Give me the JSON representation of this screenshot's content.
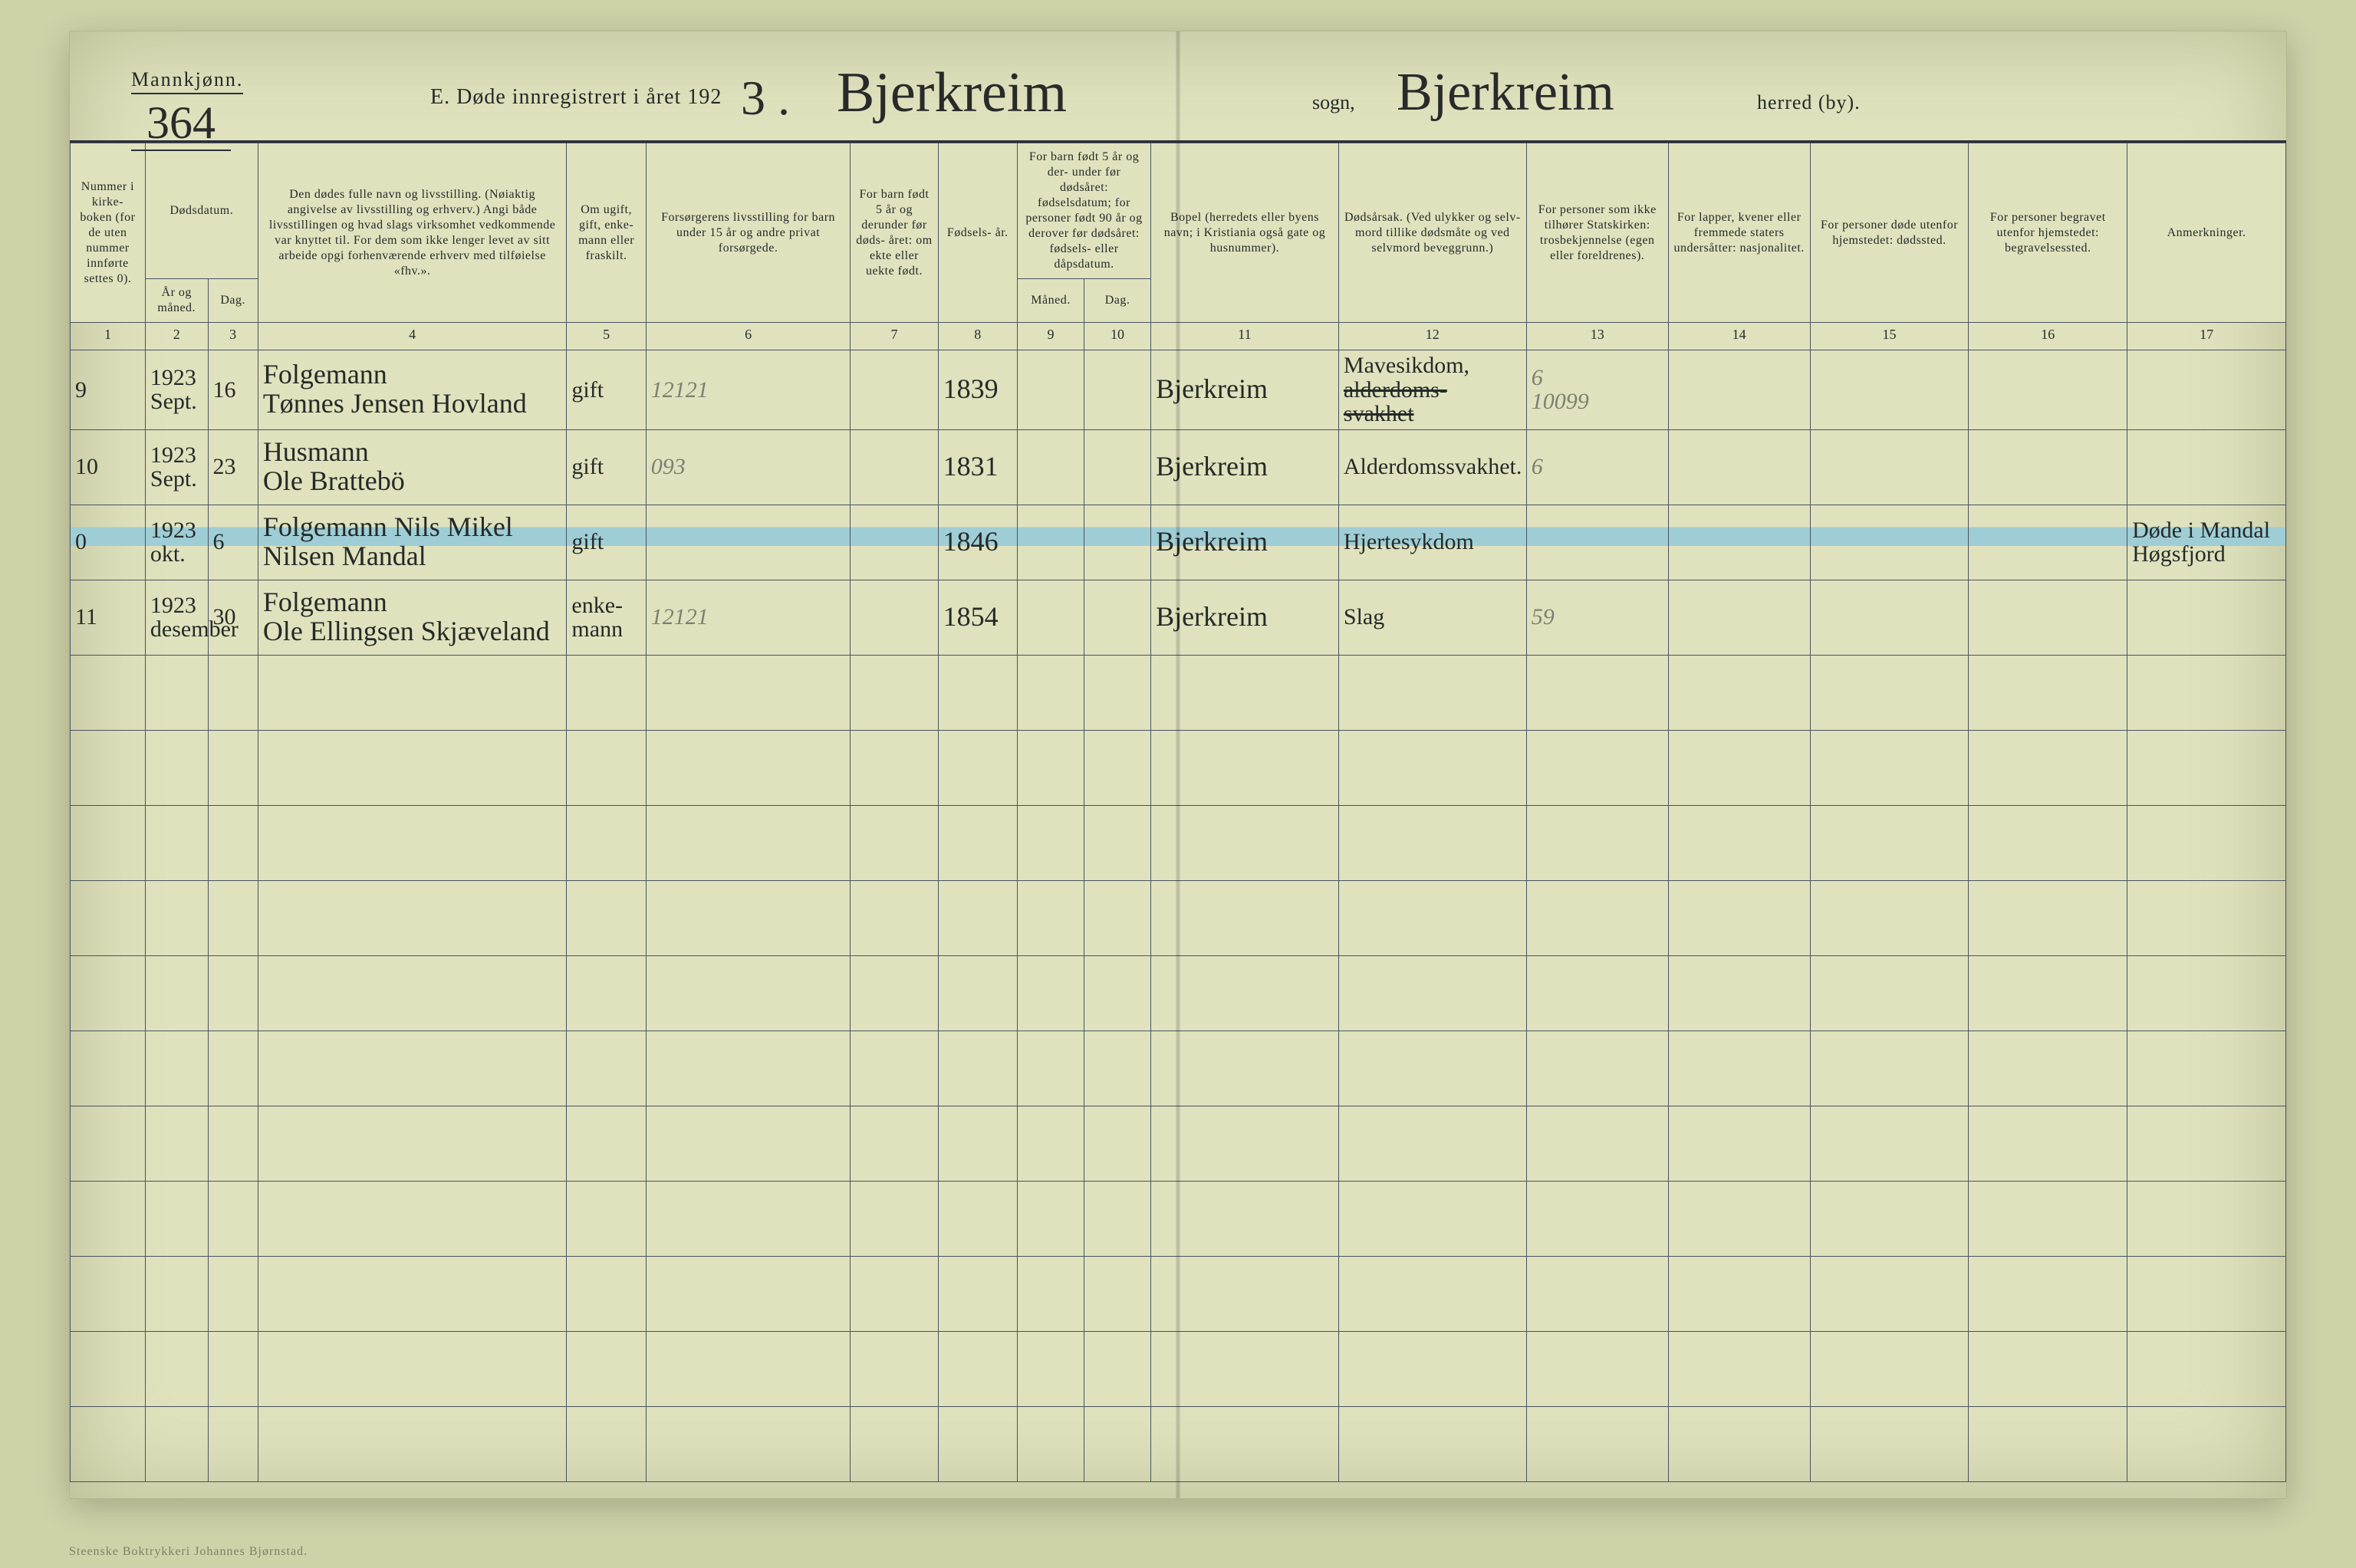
{
  "page_number": "364",
  "gender_label": "Mannkjønn.",
  "title_prefix": "E.  Døde innregistrert i året 19",
  "title_year_printed_suffix": "2",
  "title_year_handwritten": "3 .",
  "parish_name": "Bjerkreim",
  "sogn_label": "sogn,",
  "district_name": "Bjerkreim",
  "herred_label": "herred (by).",
  "printer_line": "Steenske Boktrykkeri Johannes Bjørnstad.",
  "columns": {
    "1": "Nummer i kirke- boken (for de uten nummer innførte settes 0).",
    "2_3": "Dødsdatum.",
    "2": "År og måned.",
    "3": "Dag.",
    "4": "Den dødes fulle navn og livsstilling. (Nøiaktig angivelse av livsstilling og erhverv.) Angi både livsstillingen og hvad slags virksomhet vedkommende var knyttet til. For dem som ikke lenger levet av sitt arbeide opgi forhenværende erhverv med tilføielse «fhv.».",
    "5": "Om ugift, gift, enke- mann eller fraskilt.",
    "6": "Forsørgerens livsstilling for barn under 15 år og andre privat forsørgede.",
    "7": "For barn født 5 år og derunder før døds- året: om ekte eller uekte født.",
    "8": "Fødsels- år.",
    "9_10": "For barn født 5 år og der- under før dødsåret: fødselsdatum; for personer født 90 år og derover før dødsåret: fødsels- eller dåpsdatum.",
    "9": "Måned.",
    "10": "Dag.",
    "11": "Bopel (herredets eller byens navn; i Kristiania også gate og husnummer).",
    "12": "Dødsårsak. (Ved ulykker og selv- mord tillike dødsmåte og ved selvmord beveggrunn.)",
    "13": "For personer som ikke tilhører Statskirken: trosbekjennelse (egen eller foreldrenes).",
    "14": "For lapper, kvener eller fremmede staters undersåtter: nasjonalitet.",
    "15": "For personer døde utenfor hjemstedet: dødssted.",
    "16": "For personer begravet utenfor hjemstedet: begravelsessted.",
    "17": "Anmerkninger."
  },
  "rows": [
    {
      "no": "9",
      "yearmonth": "1923\nSept.",
      "day": "16",
      "name": "Folgemann\nTønnes Jensen Hovland",
      "marital": "gift",
      "provider": "12121",
      "birthyear": "1839",
      "residence": "Bjerkreim",
      "cause": "Mavesikdom,",
      "cause_struck": "alderdoms- svakhet",
      "col13a": "6",
      "col13b": "10099",
      "remarks": ""
    },
    {
      "no": "10",
      "yearmonth": "1923\nSept.",
      "day": "23",
      "name": "Husmann\nOle Brattebö",
      "marital": "gift",
      "provider": "093",
      "birthyear": "1831",
      "residence": "Bjerkreim",
      "cause": "Alderdomssvakhet.",
      "col13a": "6",
      "col13b": "",
      "remarks": ""
    },
    {
      "no": "0",
      "yearmonth": "1923\nokt.",
      "day": "6",
      "name": "Folgemann  Nils Mikel\nNilsen Mandal",
      "marital": "gift",
      "provider": "",
      "birthyear": "1846",
      "residence": "Bjerkreim",
      "cause": "Hjertesykdom",
      "col13a": "",
      "col13b": "",
      "remarks": "Døde i Mandal\nHøgsfjord",
      "highlight": true
    },
    {
      "no": "11",
      "yearmonth": "1923\ndesember",
      "day": "30",
      "name": "Folgemann\nOle Ellingsen Skjæveland",
      "marital": "enke-\nmann",
      "provider": "12121",
      "birthyear": "1854",
      "residence": "Bjerkreim",
      "cause": "Slag",
      "col13a": "59",
      "col13b": "",
      "remarks": ""
    }
  ],
  "blank_rows": 11
}
